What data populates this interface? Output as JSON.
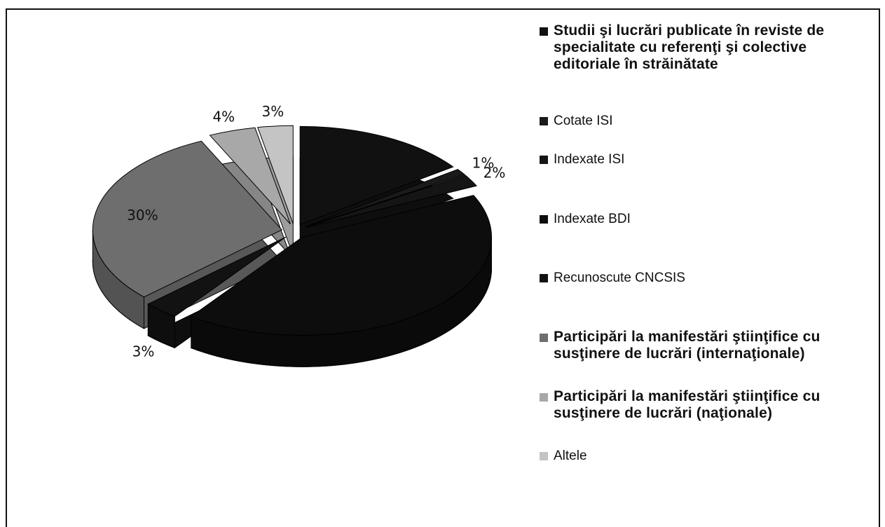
{
  "chart_data": {
    "type": "pie",
    "categories": [
      "Studii şi lucrări publicate în reviste de specialitate cu referenţi şi colective editoriale în străinătate",
      "Cotate ISI",
      "Indexate ISI",
      "Indexate BDI",
      "Recunoscute CNCSIS",
      "Participări la manifestări ştiinţifice cu susţinere de lucrări (internaţionale)",
      "Participări la manifestări ştiinţifice cu susţinere de lucrări (naţionale)",
      "Altele"
    ],
    "values": [
      15,
      1,
      2,
      42,
      3,
      30,
      4,
      3
    ],
    "value_labels": [
      null,
      "1%",
      "2%",
      null,
      "3%",
      "30%",
      "4%",
      "3%"
    ],
    "colors": [
      "#111111",
      "#1a1a1a",
      "#151515",
      "#0d0d0d",
      "#121212",
      "#6e6e6e",
      "#a8a8a8",
      "#c4c4c4"
    ],
    "legend": "right"
  }
}
